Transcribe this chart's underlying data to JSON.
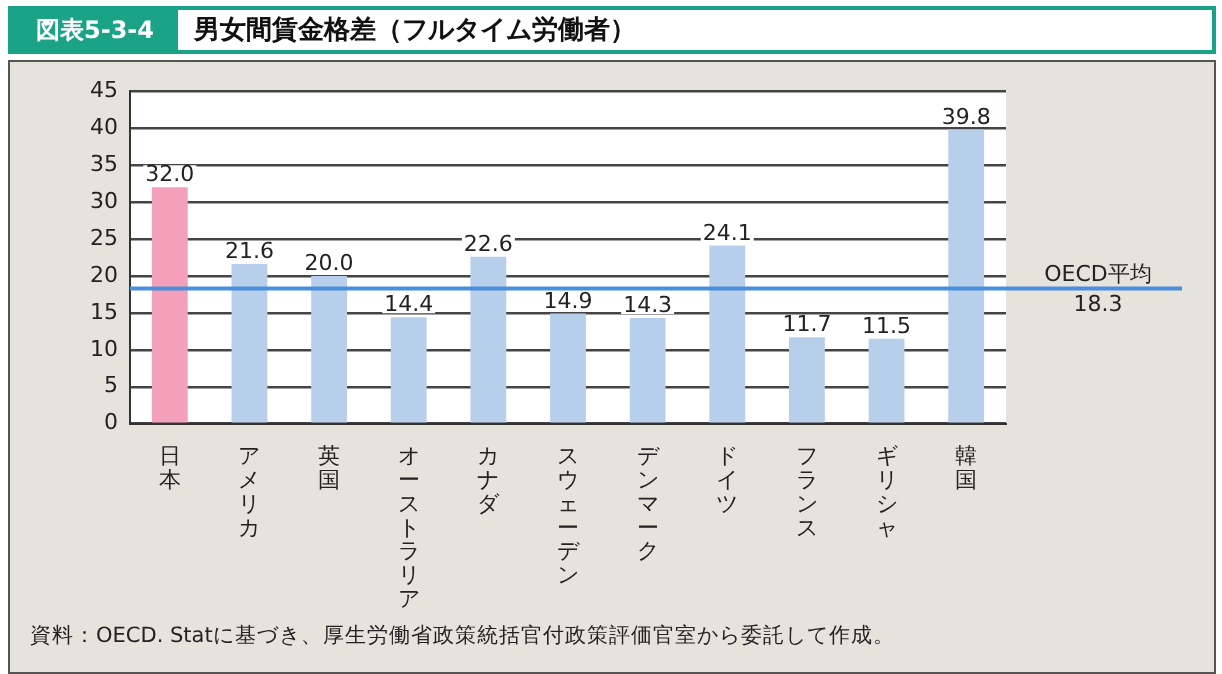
{
  "chart_data": {
    "type": "bar",
    "title": "男女間賃金格差（フルタイム労働者）",
    "subtitle": "図表5-3-4",
    "categories": [
      "日本",
      "アメリカ",
      "英国",
      "オーストラリア",
      "カナダ",
      "スウェーデン",
      "デンマーク",
      "ドイツ",
      "フランス",
      "ギリシャ",
      "韓国"
    ],
    "values": [
      32.0,
      21.6,
      20.0,
      14.4,
      22.6,
      14.9,
      14.3,
      24.1,
      11.7,
      11.5,
      39.8
    ],
    "colors": [
      "#f4a0bb",
      "#b8cfeb",
      "#b8cfeb",
      "#b8cfeb",
      "#b8cfeb",
      "#b8cfeb",
      "#b8cfeb",
      "#b8cfeb",
      "#b8cfeb",
      "#b8cfeb",
      "#b8cfeb"
    ],
    "value_labels": [
      "32.0",
      "21.6",
      "20.0",
      "14.4",
      "22.6",
      "14.9",
      "14.3",
      "24.1",
      "11.7",
      "11.5",
      "39.8"
    ],
    "ylim": [
      0,
      45
    ],
    "yticks": [
      0,
      5,
      10,
      15,
      20,
      25,
      30,
      35,
      40,
      45
    ],
    "grid": "y",
    "legend": false,
    "ref_lines": [
      {
        "axis": "y",
        "value": 18.3,
        "label": "OECD平均\n18.3",
        "color": "#4a8fdb"
      }
    ],
    "annotations": [
      "資料：OECD. Statに基づき、厚生労働省政策統括官付政策評価官室から委託して作成。"
    ]
  }
}
